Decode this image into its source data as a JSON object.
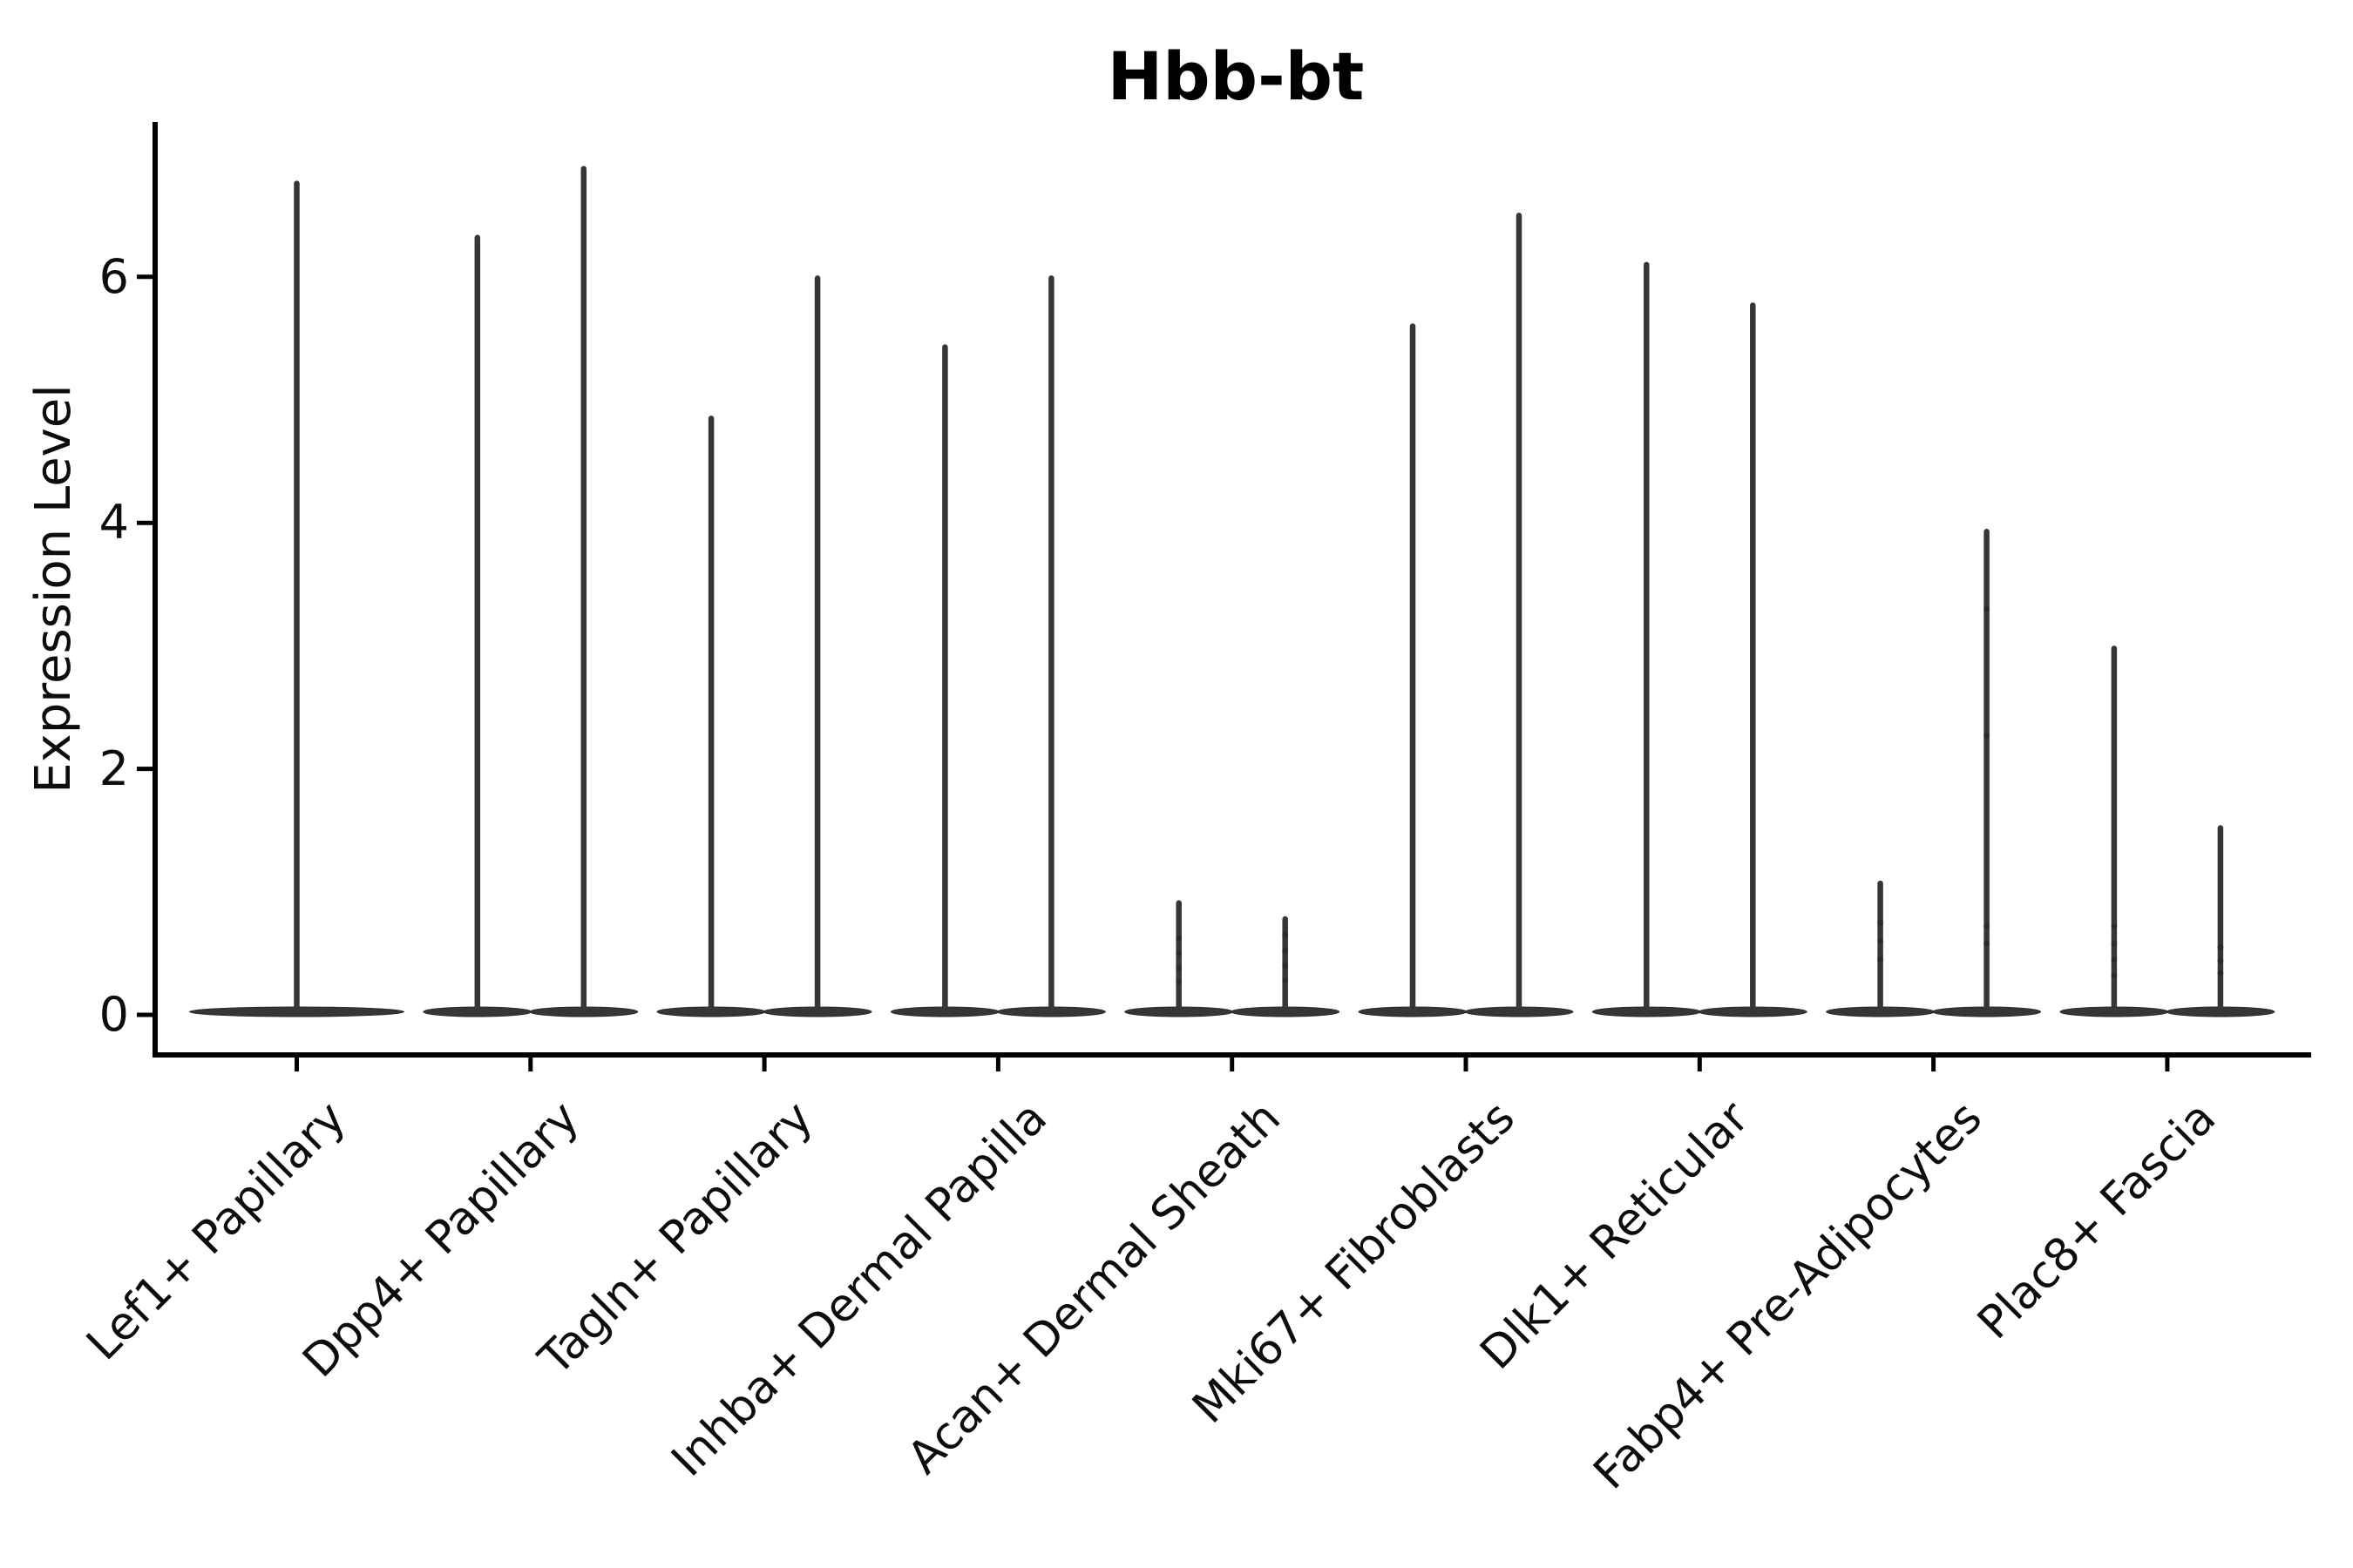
{
  "colors": {
    "background": "#ffffff",
    "axis": "#000000",
    "text": "#0d0d0d",
    "violin_fill": "#363636",
    "violin_edge": "#2b2b2b",
    "dot": "#2b2b2b"
  },
  "chart_data": {
    "type": "violin",
    "title": "Hbb-bt",
    "ylabel": "Expression Level",
    "xlabel": "",
    "grid": false,
    "legend": null,
    "ylim": [
      0,
      7.3
    ],
    "ytick_values": [
      0,
      2,
      4,
      6
    ],
    "ytick_labels": [
      "0",
      "2",
      "4",
      "6"
    ],
    "categories": [
      "Lef1+ Papillary",
      "Dpp4+ Papillary",
      "Tagln+ Papillary",
      "Inhba+ Dermal Papilla",
      "Acan+ Dermal Sheath",
      "Mki67+ Fibroblasts",
      "Dlk1+ Reticular",
      "Fabp4+ Pre-Adipocytes",
      "Plac8+ Fascia"
    ],
    "violin_description": "Each category shows one or two extremely thin violins: a wide flat density bulge at expression 0 with a narrow spike rising to the maximum expression value.",
    "violins": [
      {
        "category": "Lef1+ Papillary",
        "spikes": [
          {
            "max": 6.78,
            "dots": []
          }
        ]
      },
      {
        "category": "Dpp4+ Papillary",
        "spikes": [
          {
            "max": 6.34,
            "dots": []
          },
          {
            "max": 6.9,
            "dots": []
          }
        ]
      },
      {
        "category": "Tagln+ Papillary",
        "spikes": [
          {
            "max": 4.87,
            "dots": []
          },
          {
            "max": 6.01,
            "dots": []
          }
        ]
      },
      {
        "category": "Inhba+ Dermal Papilla",
        "spikes": [
          {
            "max": 5.45,
            "dots": []
          },
          {
            "max": 6.01,
            "dots": []
          }
        ]
      },
      {
        "category": "Acan+ Dermal Sheath",
        "spikes": [
          {
            "max": 0.93,
            "dots": [
              0.62,
              0.5,
              0.38,
              0.27
            ]
          },
          {
            "max": 0.8,
            "dots": [
              0.65,
              0.52,
              0.4,
              0.28
            ]
          }
        ]
      },
      {
        "category": "Mki67+ Fibroblasts",
        "spikes": [
          {
            "max": 5.62,
            "dots": []
          },
          {
            "max": 6.52,
            "dots": []
          }
        ]
      },
      {
        "category": "Dlk1+ Reticular",
        "spikes": [
          {
            "max": 6.12,
            "dots": []
          },
          {
            "max": 5.79,
            "dots": []
          }
        ]
      },
      {
        "category": "Fabp4+ Pre-Adipocytes",
        "spikes": [
          {
            "max": 1.09,
            "dots": [
              0.75,
              0.6,
              0.45
            ]
          },
          {
            "max": 3.95,
            "dots": [
              3.3,
              2.27,
              0.72,
              0.58
            ]
          }
        ]
      },
      {
        "category": "Plac8+ Fascia",
        "spikes": [
          {
            "max": 3.0,
            "dots": [
              0.72,
              0.58,
              0.45,
              0.32
            ]
          },
          {
            "max": 1.54,
            "dots": [
              0.55,
              0.44,
              0.34
            ]
          }
        ]
      }
    ]
  }
}
